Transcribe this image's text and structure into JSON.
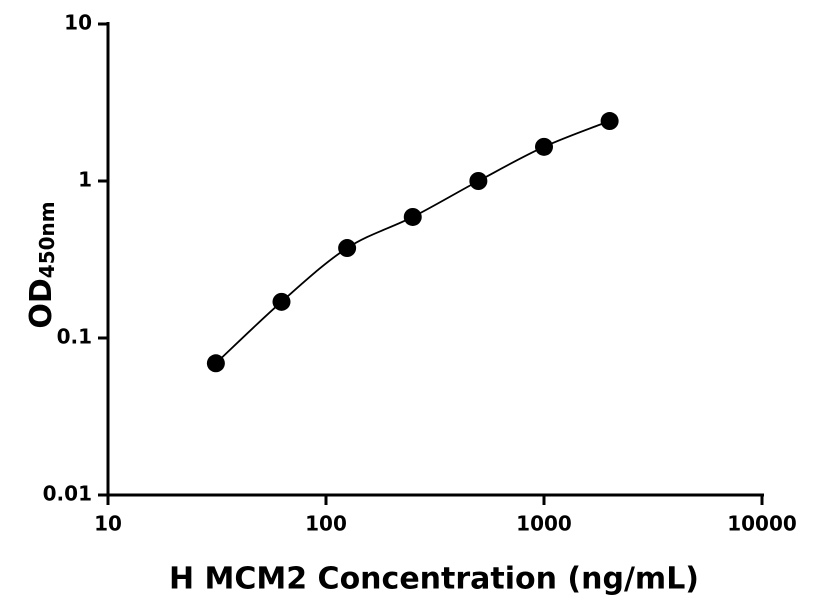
{
  "chart_data": {
    "type": "scatter",
    "x_label": "H MCM2 Concentration (ng/mL)",
    "y_label": {
      "text": "OD",
      "subscript": "450nm"
    },
    "x": [
      31.25,
      62.5,
      125,
      250,
      500,
      1000,
      2000
    ],
    "series": [
      {
        "color": "#000000",
        "values": [
          0.069,
          0.17,
          0.374,
          0.59,
          1.0,
          1.65,
          2.41
        ]
      }
    ],
    "x_log": true,
    "y_log": true,
    "xlim": [
      10,
      10000
    ],
    "xticks": [
      10,
      100,
      1000,
      10000
    ],
    "ylim": [
      0.01,
      10
    ],
    "yticks": [
      0.01,
      0.1,
      1,
      10
    ],
    "fit_line": true,
    "grid": false
  }
}
